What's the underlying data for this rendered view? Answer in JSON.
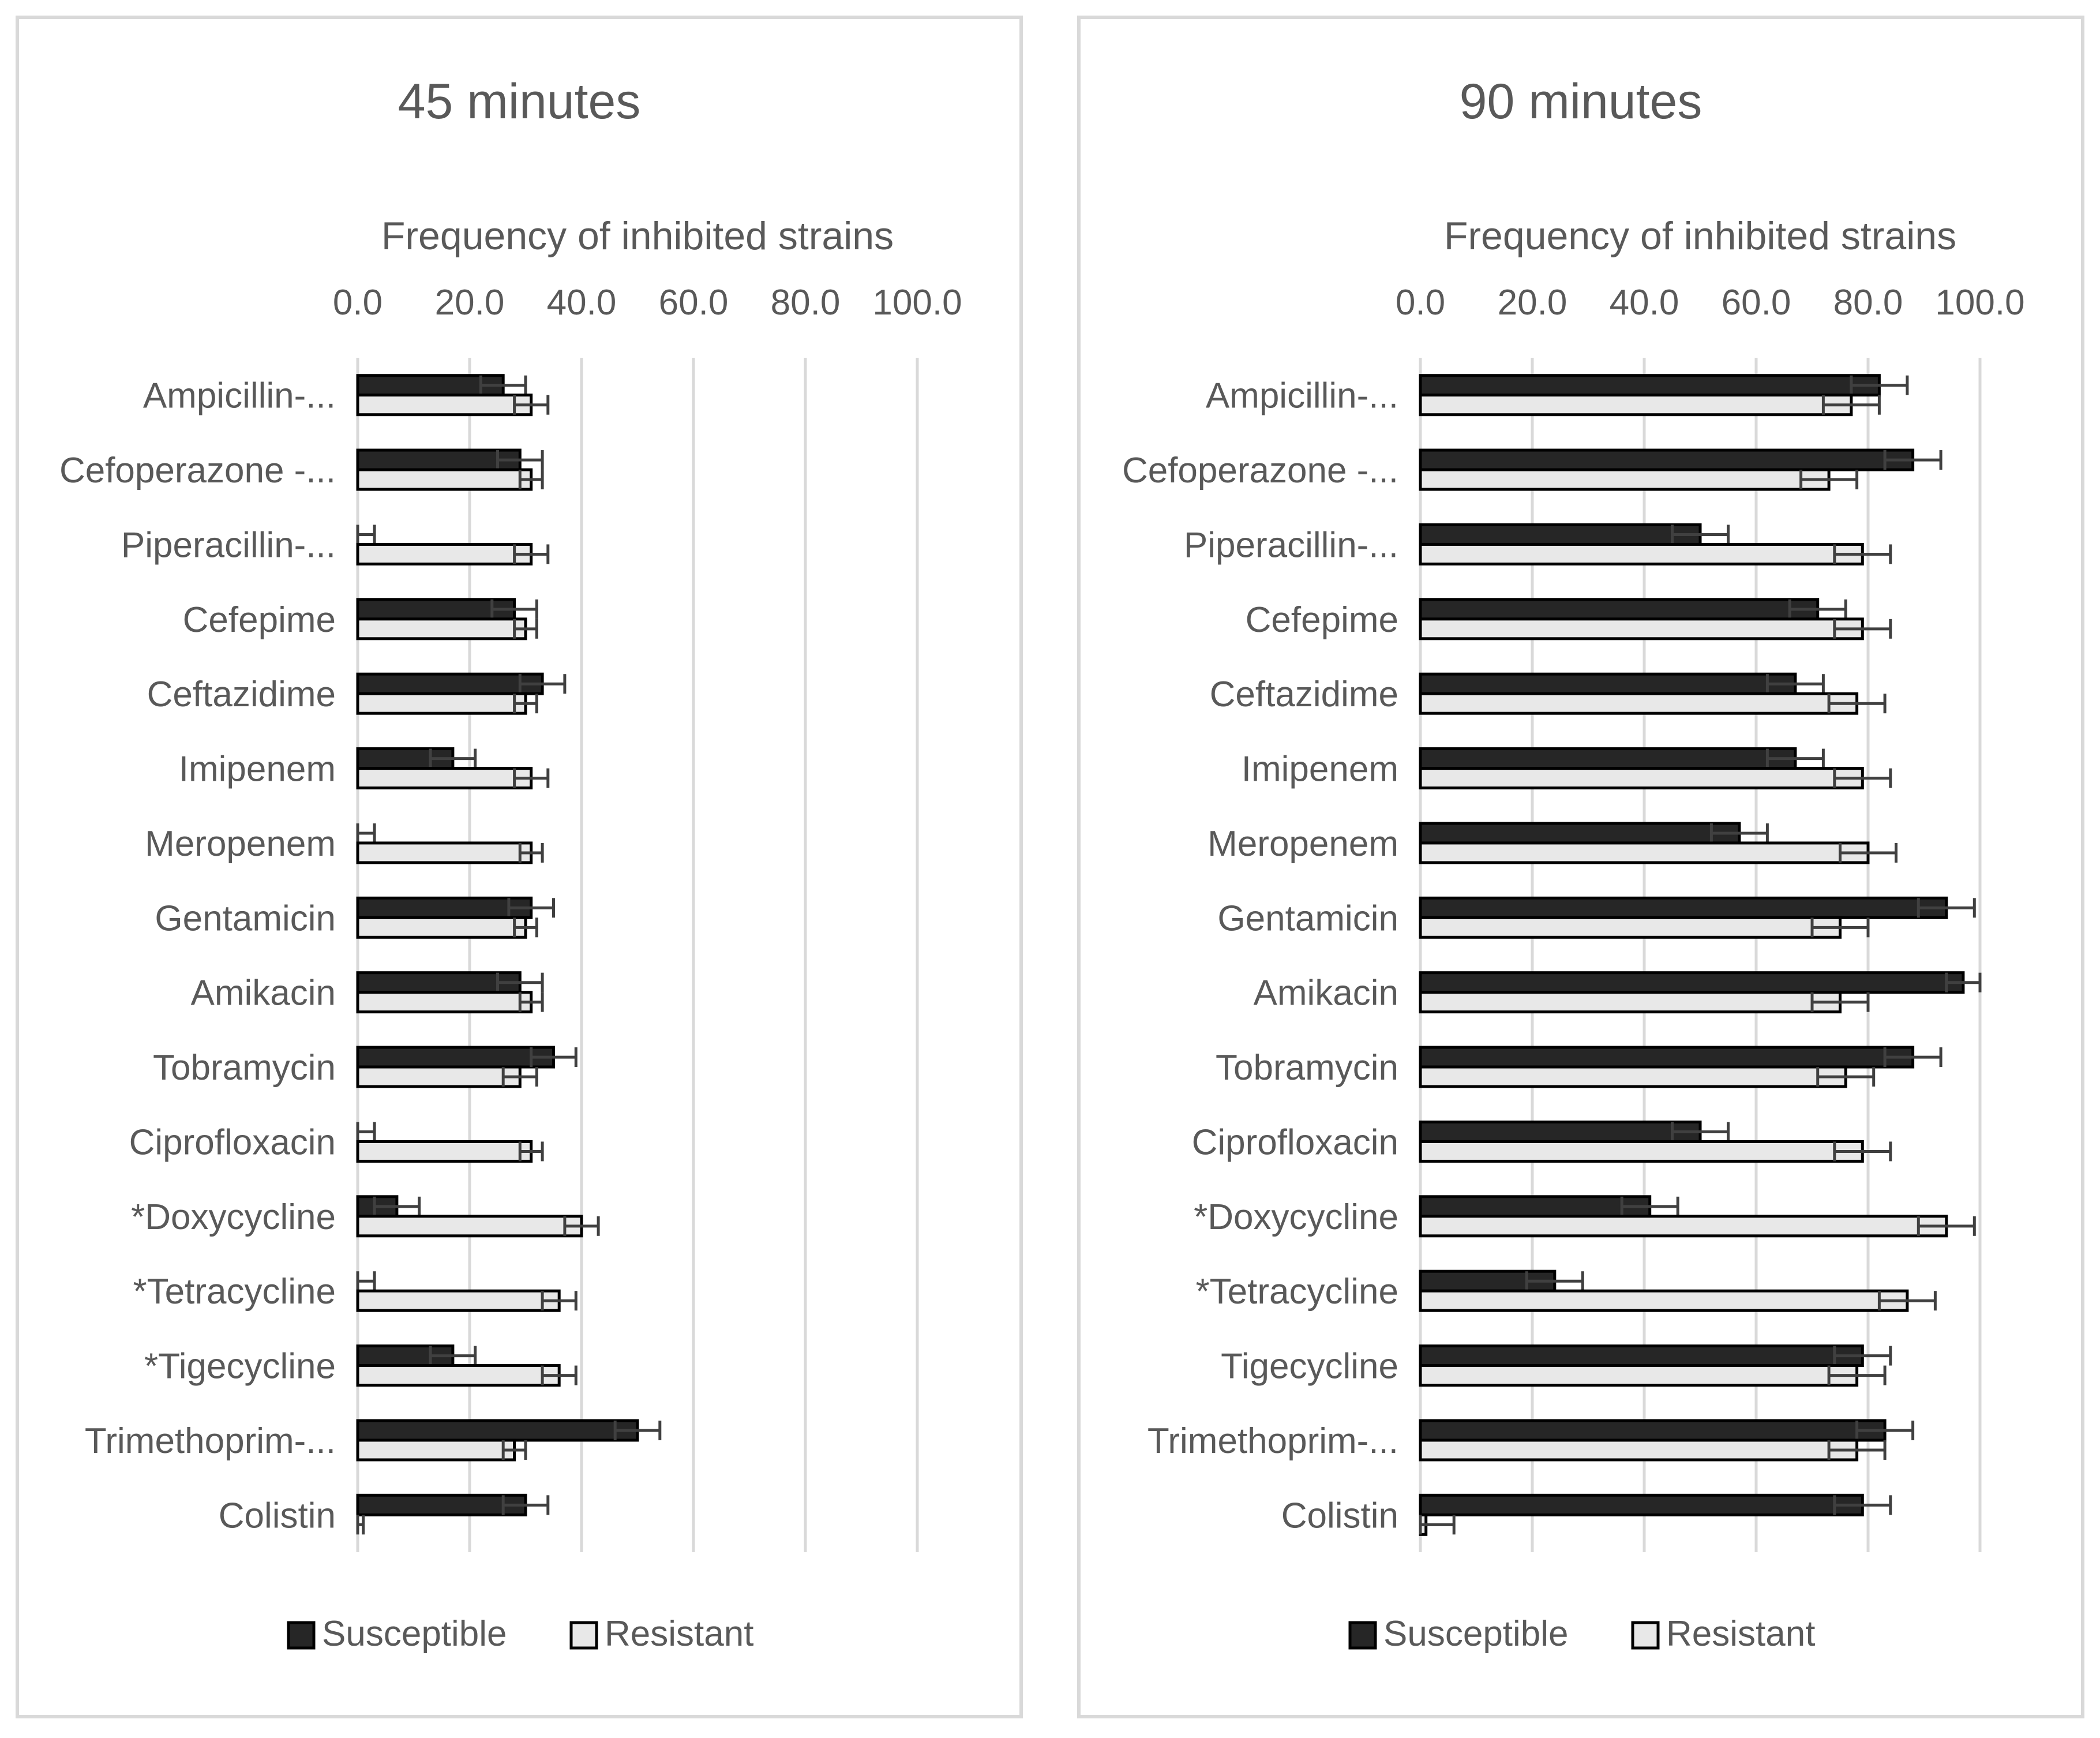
{
  "chart_data": [
    {
      "type": "bar",
      "orientation": "horizontal",
      "title": "45 minutes",
      "xlabel": "Frequency of inhibited strains",
      "xlim": [
        0,
        100
      ],
      "x_ticks": [
        "0.0",
        "20.0",
        "40.0",
        "60.0",
        "80.0",
        "100.0"
      ],
      "grid": true,
      "legend": "bottom",
      "categories": [
        "Ampicillin-...",
        "Cefoperazone -...",
        "Piperacillin-...",
        "Cefepime",
        "Ceftazidime",
        "Imipenem",
        "Meropenem",
        "Gentamicin",
        "Amikacin",
        "Tobramycin",
        "Ciprofloxacin",
        "*Doxycycline",
        "*Tetracycline",
        "*Tigecycline",
        "Trimethoprim-...",
        "Colistin"
      ],
      "series": [
        {
          "name": "Susceptible",
          "color": "#262626",
          "values": [
            26,
            29,
            0,
            28,
            33,
            17,
            0,
            31,
            29,
            35,
            0,
            7,
            0,
            17,
            50,
            30
          ],
          "errors": [
            4,
            4,
            3,
            4,
            4,
            4,
            3,
            4,
            4,
            4,
            3,
            4,
            3,
            4,
            4,
            4
          ]
        },
        {
          "name": "Resistant",
          "color": "#e8e8e8",
          "values": [
            31,
            31,
            31,
            30,
            30,
            31,
            31,
            30,
            31,
            29,
            31,
            40,
            36,
            36,
            28,
            0
          ],
          "errors": [
            3,
            2,
            3,
            2,
            2,
            3,
            2,
            2,
            2,
            3,
            2,
            3,
            3,
            3,
            2,
            1
          ]
        }
      ]
    },
    {
      "type": "bar",
      "orientation": "horizontal",
      "title": "90 minutes",
      "xlabel": "Frequency of inhibited strains",
      "xlim": [
        0,
        100
      ],
      "x_ticks": [
        "0.0",
        "20.0",
        "40.0",
        "60.0",
        "80.0",
        "100.0"
      ],
      "grid": true,
      "legend": "bottom",
      "categories": [
        "Ampicillin-...",
        "Cefoperazone -...",
        "Piperacillin-...",
        "Cefepime",
        "Ceftazidime",
        "Imipenem",
        "Meropenem",
        "Gentamicin",
        "Amikacin",
        "Tobramycin",
        "Ciprofloxacin",
        "*Doxycycline",
        "*Tetracycline",
        "Tigecycline",
        "Trimethoprim-...",
        "Colistin"
      ],
      "series": [
        {
          "name": "Susceptible",
          "color": "#262626",
          "values": [
            82,
            88,
            50,
            71,
            67,
            67,
            57,
            94,
            97,
            88,
            50,
            41,
            24,
            79,
            83,
            79
          ],
          "errors": [
            5,
            5,
            5,
            5,
            5,
            5,
            5,
            5,
            3,
            5,
            5,
            5,
            5,
            5,
            5,
            5
          ]
        },
        {
          "name": "Resistant",
          "color": "#e8e8e8",
          "values": [
            77,
            73,
            79,
            79,
            78,
            79,
            80,
            75,
            75,
            76,
            79,
            94,
            87,
            78,
            78,
            1
          ],
          "errors": [
            5,
            5,
            5,
            5,
            5,
            5,
            5,
            5,
            5,
            5,
            5,
            5,
            5,
            5,
            5,
            5
          ]
        }
      ]
    }
  ]
}
